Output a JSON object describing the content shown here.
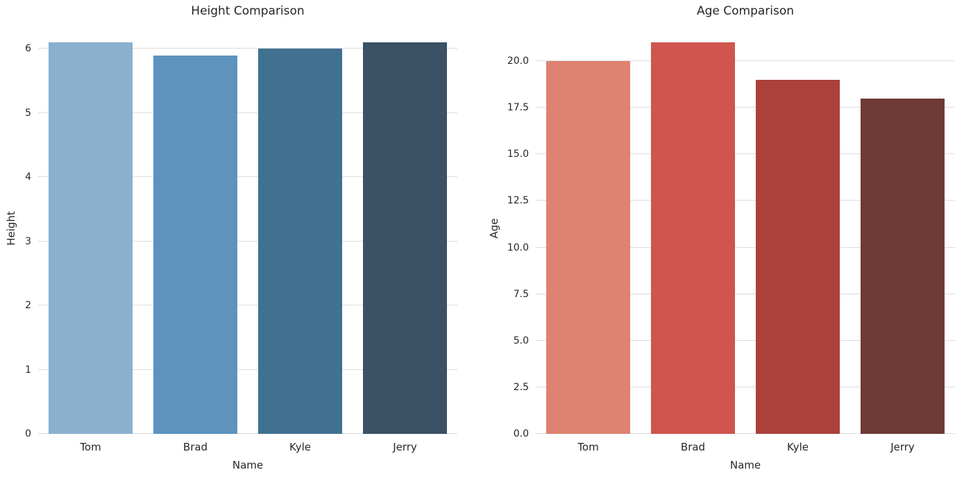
{
  "background": "#ffffff",
  "text_color": "#262626",
  "grid_color": "#dcdcdc",
  "chart_data": [
    {
      "type": "bar",
      "title": "Height Comparison",
      "xlabel": "Name",
      "ylabel": "Height",
      "categories": [
        "Tom",
        "Brad",
        "Kyle",
        "Jerry"
      ],
      "values": [
        6.1,
        5.9,
        6.0,
        6.1
      ],
      "bar_colors": [
        "#8ab0cd",
        "#5e93be",
        "#417190",
        "#3b5166"
      ],
      "ylim": [
        0,
        6.405
      ],
      "yticks": [
        0,
        1,
        2,
        3,
        4,
        5,
        6
      ],
      "ytick_labels": [
        "0",
        "1",
        "2",
        "3",
        "4",
        "5",
        "6"
      ],
      "grid": "horizontal",
      "legend": false
    },
    {
      "type": "bar",
      "title": "Age Comparison",
      "xlabel": "Name",
      "ylabel": "Age",
      "categories": [
        "Tom",
        "Brad",
        "Kyle",
        "Jerry"
      ],
      "values": [
        20,
        21,
        19,
        18
      ],
      "bar_colors": [
        "#de8271",
        "#cf554d",
        "#ac413c",
        "#6f3a36"
      ],
      "ylim": [
        0,
        22.05
      ],
      "yticks": [
        0,
        2.5,
        5,
        7.5,
        10,
        12.5,
        15,
        17.5,
        20
      ],
      "ytick_labels": [
        "0.0",
        "2.5",
        "5.0",
        "7.5",
        "10.0",
        "12.5",
        "15.0",
        "17.5",
        "20.0"
      ],
      "grid": "horizontal",
      "legend": false
    }
  ]
}
